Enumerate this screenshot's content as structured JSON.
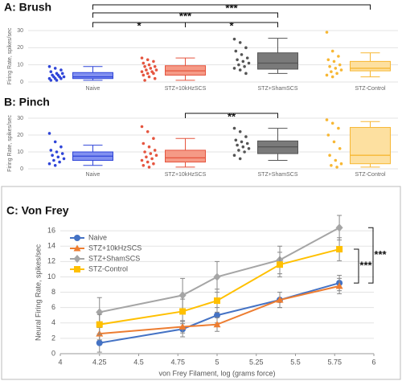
{
  "chart_data": [
    {
      "type": "box",
      "title": "A: Brush",
      "ylabel": "Firing Rate, spikes/sec",
      "ylim": [
        0,
        30
      ],
      "yticks": [
        0,
        10,
        20,
        30
      ],
      "grid": true,
      "categories": [
        "Naive",
        "STZ+10kHzSCS",
        "STZ+ShamSCS",
        "STZ-Control"
      ],
      "colors": [
        "#2f45d8",
        "#e5553f",
        "#555555",
        "#f7b733"
      ],
      "fills": [
        "#8190f0",
        "#f59a86",
        "#7a7a7a",
        "#fde0a0"
      ],
      "boxes": [
        {
          "min": 1,
          "q1": 2,
          "median": 3,
          "q3": 5.5,
          "max": 9,
          "points": [
            9,
            8,
            7,
            6,
            5,
            5,
            4,
            4,
            3,
            3,
            3,
            2,
            2,
            2,
            1,
            1
          ]
        },
        {
          "min": 1,
          "q1": 4,
          "median": 6.5,
          "q3": 9.5,
          "max": 14,
          "points": [
            14,
            13,
            12,
            11,
            10,
            9,
            9,
            8,
            7,
            7,
            6,
            6,
            5,
            5,
            4,
            3,
            2,
            1
          ]
        },
        {
          "min": 5,
          "q1": 7.5,
          "median": 11,
          "q3": 17,
          "max": 25.5,
          "points": [
            25,
            23,
            20,
            18,
            16,
            14,
            13,
            12,
            11,
            10,
            9,
            8,
            7,
            5
          ]
        },
        {
          "min": 3,
          "q1": 6.5,
          "median": 8,
          "q3": 12,
          "max": 17,
          "points": [
            29,
            18,
            15,
            13,
            12,
            10,
            9,
            8,
            7,
            6,
            5,
            4,
            3
          ]
        }
      ],
      "annotations": [
        "***",
        "***",
        "*",
        "*"
      ]
    },
    {
      "type": "box",
      "title": "B: Pinch",
      "ylabel": "Firing Rate, spikes/sec",
      "ylim": [
        0,
        30
      ],
      "yticks": [
        0,
        10,
        20,
        30
      ],
      "grid": true,
      "categories": [
        "Naive",
        "STZ+10kHzSCS",
        "STZ+ShamSCS",
        "STZ-Control"
      ],
      "colors": [
        "#2f45d8",
        "#e5553f",
        "#555555",
        "#f7b733"
      ],
      "fills": [
        "#8190f0",
        "#f59a86",
        "#7a7a7a",
        "#fde0a0"
      ],
      "boxes": [
        {
          "min": 2,
          "q1": 5,
          "median": 7.5,
          "q3": 10,
          "max": 14,
          "points": [
            21,
            16,
            13,
            11,
            10,
            9,
            8,
            7,
            6,
            5,
            4,
            3,
            2
          ]
        },
        {
          "min": 1,
          "q1": 4,
          "median": 6.5,
          "q3": 11,
          "max": 18,
          "points": [
            25,
            22,
            18,
            15,
            13,
            11,
            10,
            9,
            8,
            7,
            6,
            5,
            4,
            3,
            2,
            1
          ]
        },
        {
          "min": 5,
          "q1": 9,
          "median": 13,
          "q3": 16.5,
          "max": 24,
          "points": [
            24,
            22,
            19,
            17,
            16,
            15,
            14,
            13,
            12,
            11,
            10,
            8,
            6
          ]
        },
        {
          "min": 1,
          "q1": 3,
          "median": 8,
          "q3": 24.5,
          "max": 28,
          "points": [
            29,
            27,
            24,
            20,
            16,
            12,
            8,
            5,
            3,
            2,
            1
          ]
        }
      ],
      "annotations": [
        "**"
      ]
    },
    {
      "type": "line",
      "title": "C: Von Frey",
      "xlabel": "von Frey Filament, log (grams force)",
      "ylabel": "Neural Firing Rate, spikes/sec",
      "x": [
        4.25,
        4.78,
        5,
        5.4,
        5.78
      ],
      "xlim": [
        4,
        6
      ],
      "xticks": [
        4,
        4.25,
        4.5,
        4.75,
        5,
        5.25,
        5.5,
        5.75,
        6
      ],
      "ylim": [
        0,
        18
      ],
      "yticks": [
        0,
        2,
        4,
        6,
        8,
        10,
        12,
        14,
        16
      ],
      "grid": true,
      "legend": "upper left",
      "series": [
        {
          "name": "Naive",
          "color": "#4472c4",
          "marker": "circle",
          "values": [
            1.4,
            3.2,
            5.0,
            7.0,
            9.2
          ],
          "errors": [
            1.2,
            1.0,
            1.0,
            1.0,
            1.0
          ]
        },
        {
          "name": "STZ+10kHzSCS",
          "color": "#ed7d31",
          "marker": "triangle",
          "values": [
            2.6,
            3.5,
            3.8,
            7.0,
            8.8
          ],
          "errors": [
            0.8,
            0.8,
            0.9,
            1.0,
            1.0
          ]
        },
        {
          "name": "STZ+ShamSCS",
          "color": "#a5a5a5",
          "marker": "diamond",
          "values": [
            5.4,
            7.6,
            10.0,
            12.2,
            16.4
          ],
          "errors": [
            1.9,
            2.2,
            2.0,
            1.8,
            1.6
          ]
        },
        {
          "name": "STZ-Control",
          "color": "#ffc000",
          "marker": "square",
          "values": [
            3.8,
            5.5,
            6.9,
            11.6,
            13.6
          ],
          "errors": [
            1.3,
            1.6,
            1.5,
            1.6,
            1.5
          ]
        }
      ],
      "annotations": [
        "***",
        "***"
      ]
    }
  ]
}
